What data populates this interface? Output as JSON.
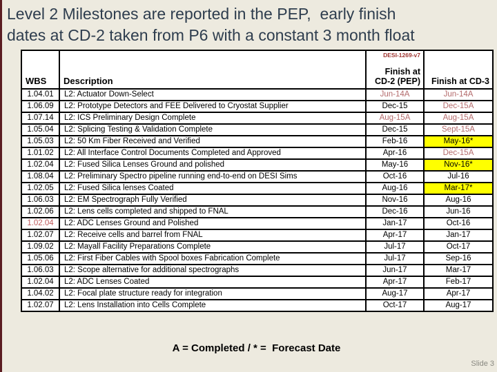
{
  "title": {
    "line1": "Level 2 Milestones are reported in the PEP,  early finish",
    "line2": "dates at CD-2 taken from P6 with a constant 3 month float"
  },
  "table": {
    "doc_ref": "DESI-1269-v7",
    "headers": {
      "wbs": "WBS",
      "description": "Description",
      "cd2": "Finish at CD-2 (PEP)",
      "cd3": "Finish at CD-3"
    },
    "rows": [
      {
        "wbs": "1.04.01",
        "desc": "L2: Actuator Down-Select",
        "cd2": "Jun-14A",
        "cd2_style": "completed",
        "cd3": "Jun-14A",
        "cd3_style": "completed"
      },
      {
        "wbs": "1.06.09",
        "desc": "L2: Prototype Detectors and FEE Delivered to Cryostat Supplier",
        "cd2": "Dec-15",
        "cd2_style": "normal",
        "cd3": "Dec-15A",
        "cd3_style": "completed"
      },
      {
        "wbs": "1.07.14",
        "desc": "L2: ICS Preliminary Design Complete",
        "cd2": "Aug-15A",
        "cd2_style": "completed",
        "cd3": "Aug-15A",
        "cd3_style": "completed"
      },
      {
        "wbs": "1.05.04",
        "desc": "L2: Splicing Testing & Validation Complete",
        "cd2": "Dec-15",
        "cd2_style": "normal",
        "cd3": "Sept-15A",
        "cd3_style": "completed"
      },
      {
        "wbs": "1.05.03",
        "desc": "L2: 50 Km Fiber Received and Verified",
        "cd2": "Feb-16",
        "cd2_style": "normal",
        "cd3": "May-16*",
        "cd3_style": "forecast"
      },
      {
        "wbs": "1.01.02",
        "desc": "L2: All Interface Control Documents Completed and Approved",
        "cd2": "Apr-16",
        "cd2_style": "normal",
        "cd3": "Dec-15A",
        "cd3_style": "completed"
      },
      {
        "wbs": "1.02.04",
        "desc": "L2: Fused Silica Lenses Ground and polished",
        "cd2": "May-16",
        "cd2_style": "normal",
        "cd3": "Nov-16*",
        "cd3_style": "forecast"
      },
      {
        "wbs": "1.08.04",
        "desc": "L2: Preliminary Spectro pipeline running end-to-end on DESI Sims",
        "cd2": "Oct-16",
        "cd2_style": "normal",
        "cd3": "Jul-16",
        "cd3_style": "normal"
      },
      {
        "wbs": "1.02.05",
        "desc": "L2: Fused Silica lenses Coated",
        "cd2": "Aug-16",
        "cd2_style": "normal",
        "cd3": "Mar-17*",
        "cd3_style": "forecast"
      },
      {
        "wbs": "1.06.03",
        "desc": "L2: EM Spectrograph Fully Verified",
        "cd2": "Nov-16",
        "cd2_style": "normal",
        "cd3": "Aug-16",
        "cd3_style": "normal"
      },
      {
        "wbs": "1.02.06",
        "desc": "L2: Lens cells completed and shipped to FNAL",
        "cd2": "Dec-16",
        "cd2_style": "normal",
        "cd3": "Jun-16",
        "cd3_style": "normal"
      },
      {
        "wbs": "1.02.04",
        "wbs_style": "flagged",
        "desc": "L2: ADC Lenses Ground and Polished",
        "cd2": "Jan-17",
        "cd2_style": "normal",
        "cd3": "Oct-16",
        "cd3_style": "normal"
      },
      {
        "wbs": "1.02.07",
        "desc": "L2: Receive cells and barrel from FNAL",
        "cd2": "Apr-17",
        "cd2_style": "normal",
        "cd3": "Jan-17",
        "cd3_style": "normal"
      },
      {
        "wbs": "1.09.02",
        "desc": "L2: Mayall Facility Preparations Complete",
        "cd2": "Jul-17",
        "cd2_style": "normal",
        "cd3": "Oct-17",
        "cd3_style": "normal"
      },
      {
        "wbs": "1.05.06",
        "desc": "L2: First Fiber Cables with Spool boxes Fabrication Complete",
        "cd2": "Jul-17",
        "cd2_style": "normal",
        "cd3": "Sep-16",
        "cd3_style": "normal"
      },
      {
        "wbs": "1.06.03",
        "desc": "L2: Scope alternative for additional spectrographs",
        "cd2": "Jun-17",
        "cd2_style": "normal",
        "cd3": "Mar-17",
        "cd3_style": "normal"
      },
      {
        "wbs": "1.02.04",
        "desc": "L2: ADC Lenses Coated",
        "cd2": "Apr-17",
        "cd2_style": "normal",
        "cd3": "Feb-17",
        "cd3_style": "normal"
      },
      {
        "wbs": "1.04.02",
        "desc": "L2: Focal plate structure ready for integration",
        "cd2": "Aug-17",
        "cd2_style": "normal",
        "cd3": "Apr-17",
        "cd3_style": "normal"
      },
      {
        "wbs": "1.02.07",
        "desc": "L2: Lens Installation into Cells Complete",
        "cd2": "Oct-17",
        "cd2_style": "normal",
        "cd3": "Aug-17",
        "cd3_style": "normal"
      }
    ]
  },
  "footer": {
    "legend": "A = Completed / * =  Forecast Date",
    "slide_number": "Slide 3"
  },
  "colors": {
    "slide_bg": "#edeadf",
    "left_bar": "#5a1c21",
    "title_text": "#2e3d4e",
    "table_bg": "#ffffff",
    "border": "#000000",
    "completed_text": "#b36a6b",
    "flagged_text": "#c05a5c",
    "forecast_bg": "#ffff00",
    "doc_ref_text": "#9e3430",
    "legend_text": "#000000",
    "slide_number_text": "#888880"
  }
}
